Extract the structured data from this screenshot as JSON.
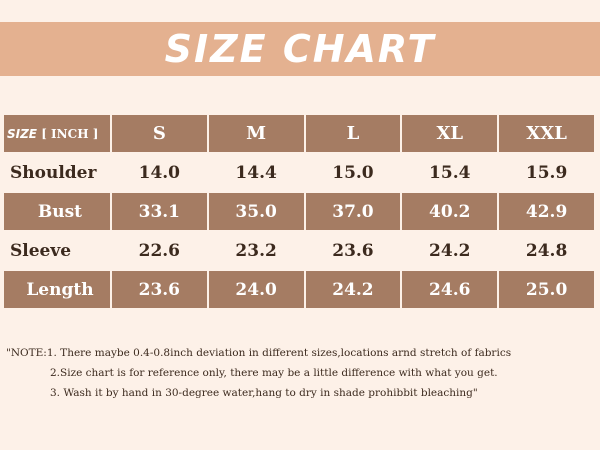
{
  "banner": {
    "title": "SIZE CHART"
  },
  "table": {
    "corner_size": "SIZE",
    "corner_unit": "[ INCH ]",
    "sizes": [
      "S",
      "M",
      "L",
      "XL",
      "XXL"
    ],
    "rows": [
      {
        "label": "Shoulder",
        "values": [
          "14.0",
          "14.4",
          "15.0",
          "15.4",
          "15.9"
        ]
      },
      {
        "label": "Bust",
        "values": [
          "33.1",
          "35.0",
          "37.0",
          "40.2",
          "42.9"
        ]
      },
      {
        "label": "Sleeve",
        "values": [
          "22.6",
          "23.2",
          "23.6",
          "24.2",
          "24.8"
        ]
      },
      {
        "label": "Length",
        "values": [
          "23.6",
          "24.0",
          "24.2",
          "24.6",
          "25.0"
        ]
      }
    ]
  },
  "notes": {
    "line1": "\"NOTE:1. There maybe 0.4-0.8inch deviation in different sizes,locations arnd stretch of fabrics",
    "line2": "2.Size chart is for reference only, there may be a little difference with what you get.",
    "line3": "3. Wash it by hand in 30-degree water,hang to dry in shade prohibbit bleaching\""
  },
  "colors": {
    "background": "#fdf1e8",
    "banner": "#e4b190",
    "cell_dark": "#a57c63",
    "text": "#3c2a1e"
  }
}
